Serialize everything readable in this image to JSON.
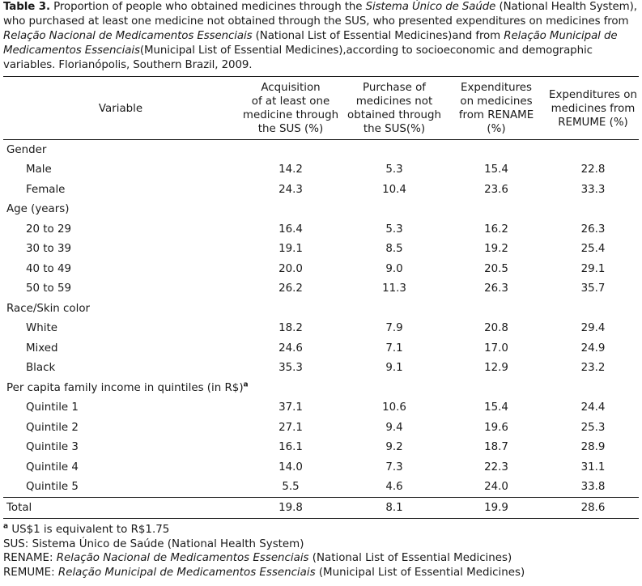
{
  "caption": {
    "label": "Table 3.",
    "text_1": " Proportion of people who obtained medicines through the ",
    "italic_1": "Sistema Único de Saúde",
    "text_2": " (National Health System), who purchased at least one medicine not obtained through the SUS, who presented expenditures on medicines from ",
    "italic_2": "Relação Nacional de Medicamentos Essenciais",
    "text_3": " (National List of Essential Medicines)and from ",
    "italic_3": "Relação Municipal de Medicamentos Essenciais",
    "text_4": "(Municipal List of Essential Medicines),according to socioeconomic and demographic variables. Florianópolis, Southern Brazil, 2009."
  },
  "table": {
    "headers": {
      "variable": "Variable",
      "col1": [
        "Acquisition",
        "of at least one",
        "medicine through",
        "the SUS (%)"
      ],
      "col2": [
        "Purchase of",
        "medicines not",
        "obtained through",
        "the SUS(%)"
      ],
      "col3": [
        "Expenditures",
        "on medicines",
        "from RENAME",
        "(%)"
      ],
      "col4": [
        "Expenditures on",
        "medicines from",
        "REMUME (%)"
      ]
    },
    "groups": [
      {
        "label": "Gender",
        "rows": [
          {
            "label": "Male",
            "values": [
              "14.2",
              "5.3",
              "15.4",
              "22.8"
            ]
          },
          {
            "label": "Female",
            "values": [
              "24.3",
              "10.4",
              "23.6",
              "33.3"
            ]
          }
        ]
      },
      {
        "label": "Age (years)",
        "rows": [
          {
            "label": "20 to 29",
            "values": [
              "16.4",
              "5.3",
              "16.2",
              "26.3"
            ]
          },
          {
            "label": "30 to 39",
            "values": [
              "19.1",
              "8.5",
              "19.2",
              "25.4"
            ]
          },
          {
            "label": "40 to 49",
            "values": [
              "20.0",
              "9.0",
              "20.5",
              "29.1"
            ]
          },
          {
            "label": "50 to 59",
            "values": [
              "26.2",
              "11.3",
              "26.3",
              "35.7"
            ]
          }
        ]
      },
      {
        "label": "Race/Skin color",
        "rows": [
          {
            "label": "White",
            "values": [
              "18.2",
              "7.9",
              "20.8",
              "29.4"
            ]
          },
          {
            "label": "Mixed",
            "values": [
              "24.6",
              "7.1",
              "17.0",
              "24.9"
            ]
          },
          {
            "label": "Black",
            "values": [
              "35.3",
              "9.1",
              "12.9",
              "23.2"
            ]
          }
        ]
      },
      {
        "label": "Per capita family income in quintiles (in R$)",
        "footnote_mark": "a",
        "rows": [
          {
            "label": "Quintile 1",
            "values": [
              "37.1",
              "10.6",
              "15.4",
              "24.4"
            ]
          },
          {
            "label": "Quintile 2",
            "values": [
              "27.1",
              "9.4",
              "19.6",
              "25.3"
            ]
          },
          {
            "label": "Quintile 3",
            "values": [
              "16.1",
              "9.2",
              "18.7",
              "28.9"
            ]
          },
          {
            "label": "Quintile 4",
            "values": [
              "14.0",
              "7.3",
              "22.3",
              "31.1"
            ]
          },
          {
            "label": "Quintile 5",
            "values": [
              "5.5",
              "4.6",
              "24.0",
              "33.8"
            ]
          }
        ]
      }
    ],
    "total": {
      "label": "Total",
      "values": [
        "19.8",
        "8.1",
        "19.9",
        "28.6"
      ]
    }
  },
  "footnotes": {
    "a_mark": "a",
    "a_text": " US$1 is equivalent to R$1.75",
    "sus": "SUS: Sistema Único de Saúde (National Health System)",
    "rename_prefix": "RENAME: ",
    "rename_italic": "Relação Nacional de Medicamentos Essenciais",
    "rename_suffix": " (National List of Essential Medicines)",
    "remume_prefix": "REMUME: ",
    "remume_italic": "Relação Municipal de Medicamentos Essenciais",
    "remume_suffix": " (Municipal List of Essential Medicines)"
  }
}
